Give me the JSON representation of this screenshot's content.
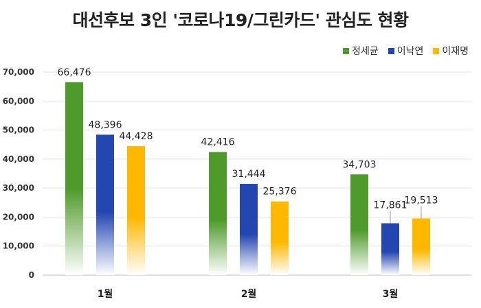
{
  "chart_data": {
    "type": "bar",
    "title": "대선후보 3인 '코로나19/그린카드' 관심도 현황",
    "categories": [
      "1월",
      "2월",
      "3월"
    ],
    "series": [
      {
        "name": "정세균",
        "values": [
          66476,
          42416,
          34703
        ],
        "color": "#4e9a2a"
      },
      {
        "name": "이낙연",
        "values": [
          48396,
          31444,
          17861
        ],
        "color": "#2346b0"
      },
      {
        "name": "이재명",
        "values": [
          44428,
          25376,
          19513
        ],
        "color": "#ffb800"
      }
    ],
    "data_labels": [
      [
        "66,476",
        "42,416",
        "34,703"
      ],
      [
        "48,396",
        "31,444",
        "17,861"
      ],
      [
        "44,428",
        "25,376",
        "19,513"
      ]
    ],
    "yticks": [
      "0",
      "10,000",
      "20,000",
      "30,000",
      "40,000",
      "50,000",
      "60,000",
      "70,000"
    ],
    "ylim": [
      0,
      70000
    ],
    "grid": true,
    "legend_position": "top-right"
  }
}
